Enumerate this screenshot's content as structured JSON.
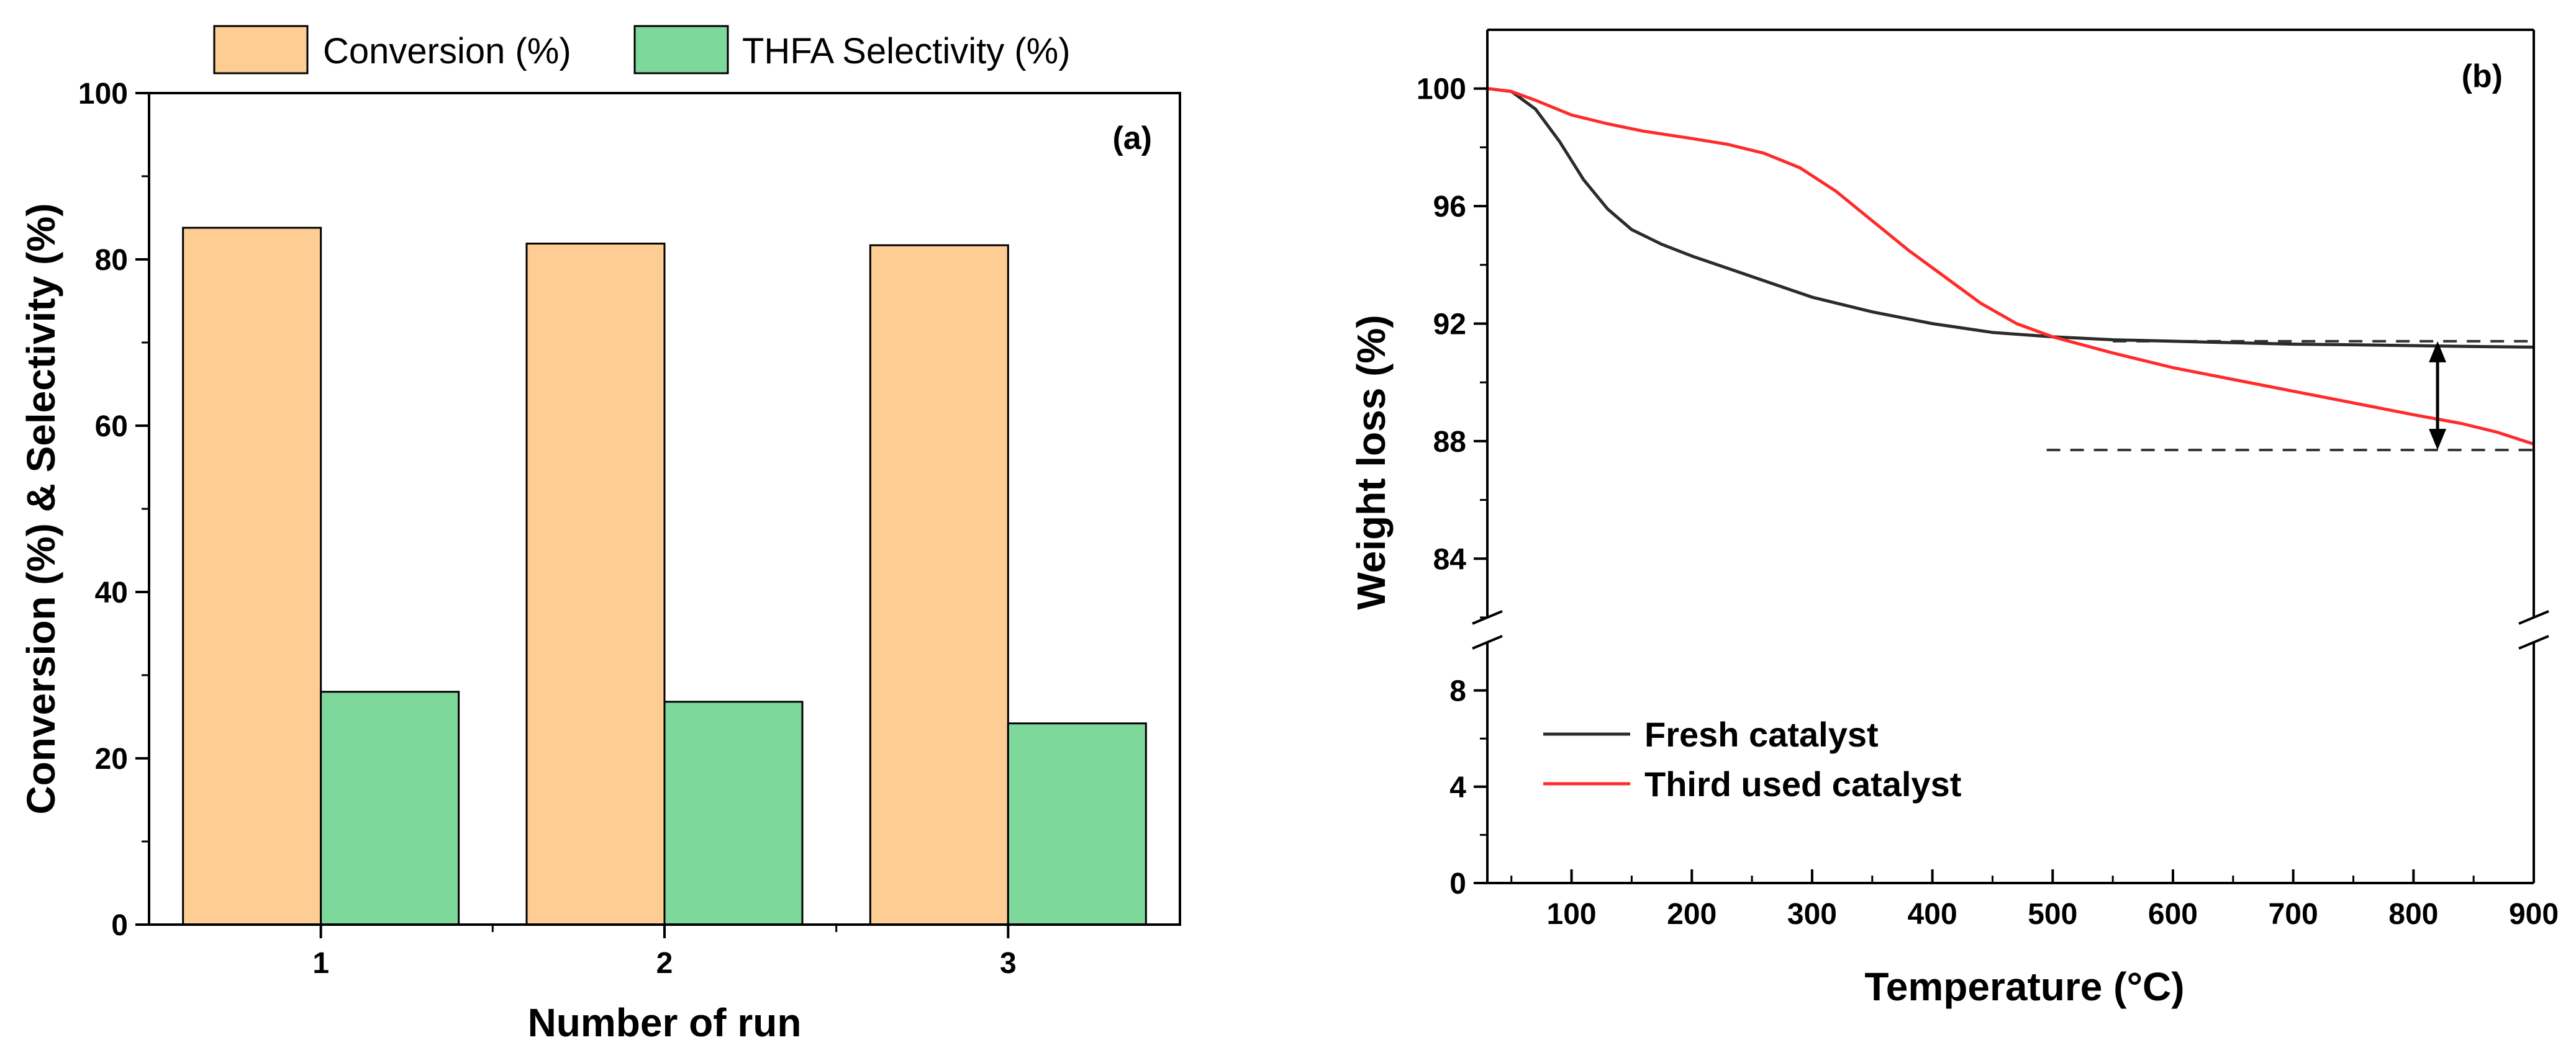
{
  "chart_data": [
    {
      "panel": "(a)",
      "type": "bar",
      "categories": [
        "1",
        "2",
        "3"
      ],
      "series": [
        {
          "name": "Conversion (%)",
          "values": [
            83.8,
            81.9,
            81.7
          ],
          "color": "#FDCD94"
        },
        {
          "name": "THFA Selectivity (%)",
          "values": [
            28.0,
            26.8,
            24.2
          ],
          "color": "#7ED89C"
        }
      ],
      "xlabel": "Number of run",
      "ylabel": "Conversion (%) & Selectivity (%)",
      "ylim": [
        0,
        100
      ],
      "yticks": [
        0,
        20,
        40,
        60,
        80,
        100
      ],
      "legend_position": "top, outside plot"
    },
    {
      "panel": "(b)",
      "type": "line",
      "xlabel": "Temperature (°C)",
      "ylabel": "Weight loss (%)",
      "xlim": [
        30,
        900
      ],
      "xticks": [
        100,
        200,
        300,
        400,
        500,
        600,
        700,
        800,
        900
      ],
      "y_axis_broken": true,
      "ylim_lower": [
        0,
        10
      ],
      "yticks_lower": [
        0,
        4,
        8
      ],
      "ylim_upper": [
        82,
        102
      ],
      "yticks_upper": [
        84,
        88,
        92,
        96,
        100
      ],
      "series": [
        {
          "name": "Fresh catalyst",
          "color": "#2b2b2b",
          "x": [
            30,
            50,
            70,
            90,
            110,
            130,
            150,
            175,
            200,
            250,
            300,
            350,
            400,
            450,
            500,
            550,
            600,
            650,
            700,
            750,
            800,
            850,
            900
          ],
          "y": [
            100.0,
            99.9,
            99.3,
            98.2,
            96.9,
            95.9,
            95.2,
            94.7,
            94.3,
            93.6,
            92.9,
            92.4,
            92.0,
            91.7,
            91.55,
            91.45,
            91.4,
            91.35,
            91.3,
            91.28,
            91.25,
            91.22,
            91.2
          ]
        },
        {
          "name": "Third used catalyst",
          "color": "#ff2b2b",
          "x": [
            30,
            50,
            70,
            100,
            130,
            160,
            200,
            230,
            260,
            290,
            320,
            350,
            380,
            410,
            440,
            470,
            500,
            550,
            600,
            650,
            700,
            750,
            800,
            840,
            870,
            900
          ],
          "y": [
            100.0,
            99.9,
            99.6,
            99.1,
            98.8,
            98.55,
            98.3,
            98.1,
            97.8,
            97.3,
            96.5,
            95.5,
            94.5,
            93.6,
            92.7,
            92.0,
            91.55,
            91.0,
            90.5,
            90.1,
            89.7,
            89.3,
            88.9,
            88.6,
            88.3,
            87.9
          ]
        }
      ],
      "annotation": {
        "type": "double-arrow",
        "x": 820,
        "y_from": 91.4,
        "y_to": 87.7,
        "reference_lines_y": [
          91.4,
          87.7
        ],
        "style": "dashed"
      },
      "legend_position": "bottom-left"
    }
  ]
}
